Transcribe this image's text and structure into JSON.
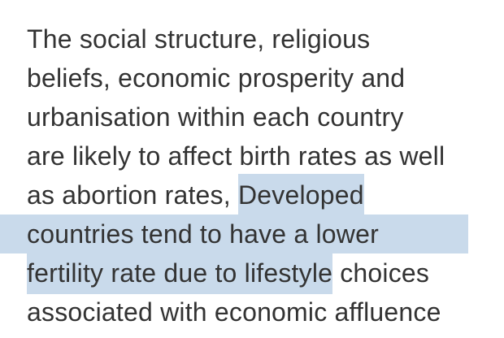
{
  "selection": {
    "highlight_color": "#c9daeb",
    "text_color": "#333333"
  },
  "paragraph": {
    "line1": "The social structure, religious",
    "line2": "beliefs, economic prosperity and",
    "line3": "urbanisation within each country",
    "line4": "are likely to affect birth rates as well",
    "line5_plain": "as abortion rates, ",
    "line5_selected": "Developed",
    "line6_selected": "countries tend to have a lower",
    "line7_selected": "fertility rate due to lifestyle",
    "line7_plain": " choices",
    "line8": "associated with economic affluence"
  }
}
